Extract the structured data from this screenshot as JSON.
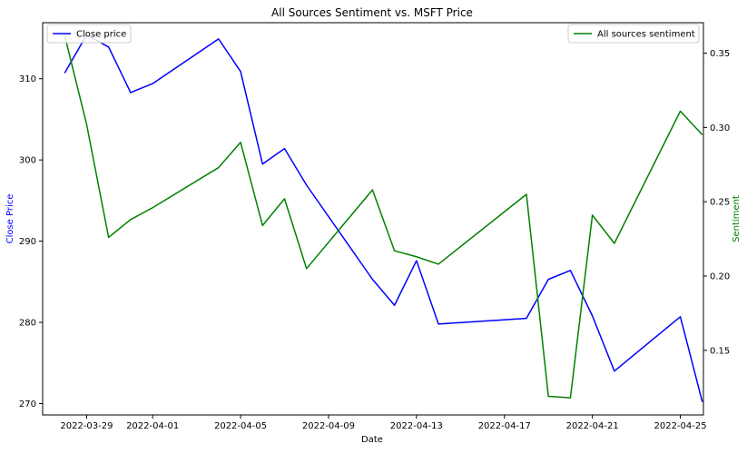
{
  "chart_data": {
    "type": "line",
    "title": "All Sources Sentiment vs. MSFT Price",
    "xlabel": "Date",
    "x_ticks": [
      "2022-03-29",
      "2022-04-01",
      "2022-04-05",
      "2022-04-09",
      "2022-04-13",
      "2022-04-17",
      "2022-04-21",
      "2022-04-25"
    ],
    "x": [
      "2022-03-28",
      "2022-03-29",
      "2022-03-30",
      "2022-03-31",
      "2022-04-01",
      "2022-04-04",
      "2022-04-05",
      "2022-04-06",
      "2022-04-07",
      "2022-04-08",
      "2022-04-11",
      "2022-04-12",
      "2022-04-13",
      "2022-04-14",
      "2022-04-18",
      "2022-04-19",
      "2022-04-20",
      "2022-04-21",
      "2022-04-22",
      "2022-04-25",
      "2022-04-26"
    ],
    "left_axis": {
      "label": "Close Price",
      "label_color": "#0000ff",
      "ticks": [
        270,
        280,
        290,
        300,
        310
      ],
      "ylim": [
        268.6,
        316.9
      ]
    },
    "right_axis": {
      "label": "Sentiment",
      "label_color": "#008000",
      "ticks": [
        0.15,
        0.2,
        0.25,
        0.3,
        0.35
      ],
      "ylim": [
        0.1065,
        0.3705
      ]
    },
    "series": [
      {
        "name": "Close price",
        "axis": "left",
        "color": "#0000ff",
        "legend_position": "top-left",
        "values": [
          310.7,
          315.4,
          313.9,
          308.3,
          309.4,
          314.9,
          310.9,
          299.5,
          301.4,
          296.9,
          285.3,
          282.1,
          287.6,
          279.8,
          280.5,
          285.3,
          286.4,
          280.8,
          274.0,
          280.7,
          270.2
        ]
      },
      {
        "name": "All sources sentiment",
        "axis": "right",
        "color": "#008000",
        "legend_position": "top-right",
        "values": [
          0.362,
          0.302,
          0.226,
          0.238,
          0.246,
          0.273,
          0.29,
          0.234,
          0.252,
          0.205,
          0.258,
          0.217,
          0.213,
          0.208,
          0.255,
          0.119,
          0.118,
          0.241,
          0.222,
          0.311,
          0.295
        ]
      }
    ],
    "grid": false
  }
}
